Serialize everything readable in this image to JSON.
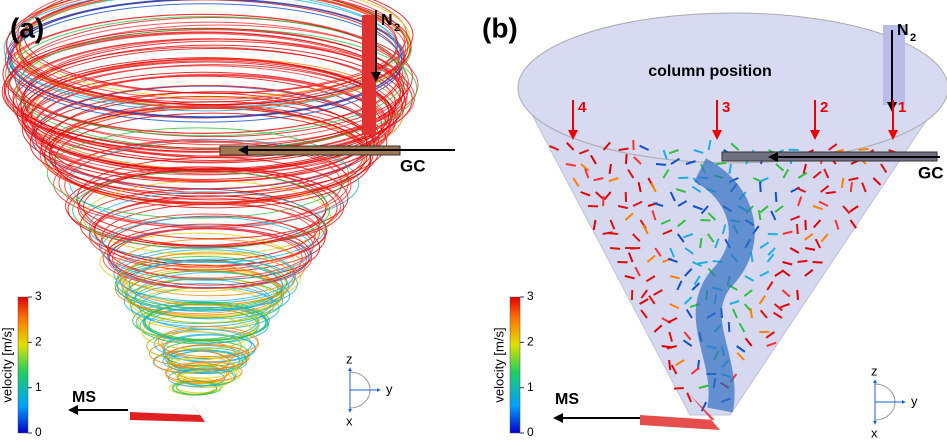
{
  "panels": [
    {
      "label": "(a)",
      "n2": "N",
      "n2_sub": "2",
      "gc": "GC",
      "ms": "MS",
      "colorbar": {
        "label": "velocity [m/s]",
        "lim": [
          0,
          3
        ],
        "ticks": [
          0,
          1,
          2,
          3
        ]
      },
      "axes": {
        "z": "z",
        "y": "y",
        "x": "x"
      }
    },
    {
      "label": "(b)",
      "n2": "N",
      "n2_sub": "2",
      "gc": "GC",
      "ms": "MS",
      "column_position": "column position",
      "markers": [
        "4",
        "3",
        "2",
        "1"
      ],
      "colorbar": {
        "label": "velocity [m/s]",
        "lim": [
          0,
          3
        ],
        "ticks": [
          0,
          1,
          2,
          3
        ]
      },
      "axes": {
        "z": "z",
        "y": "y",
        "x": "x"
      }
    }
  ]
}
